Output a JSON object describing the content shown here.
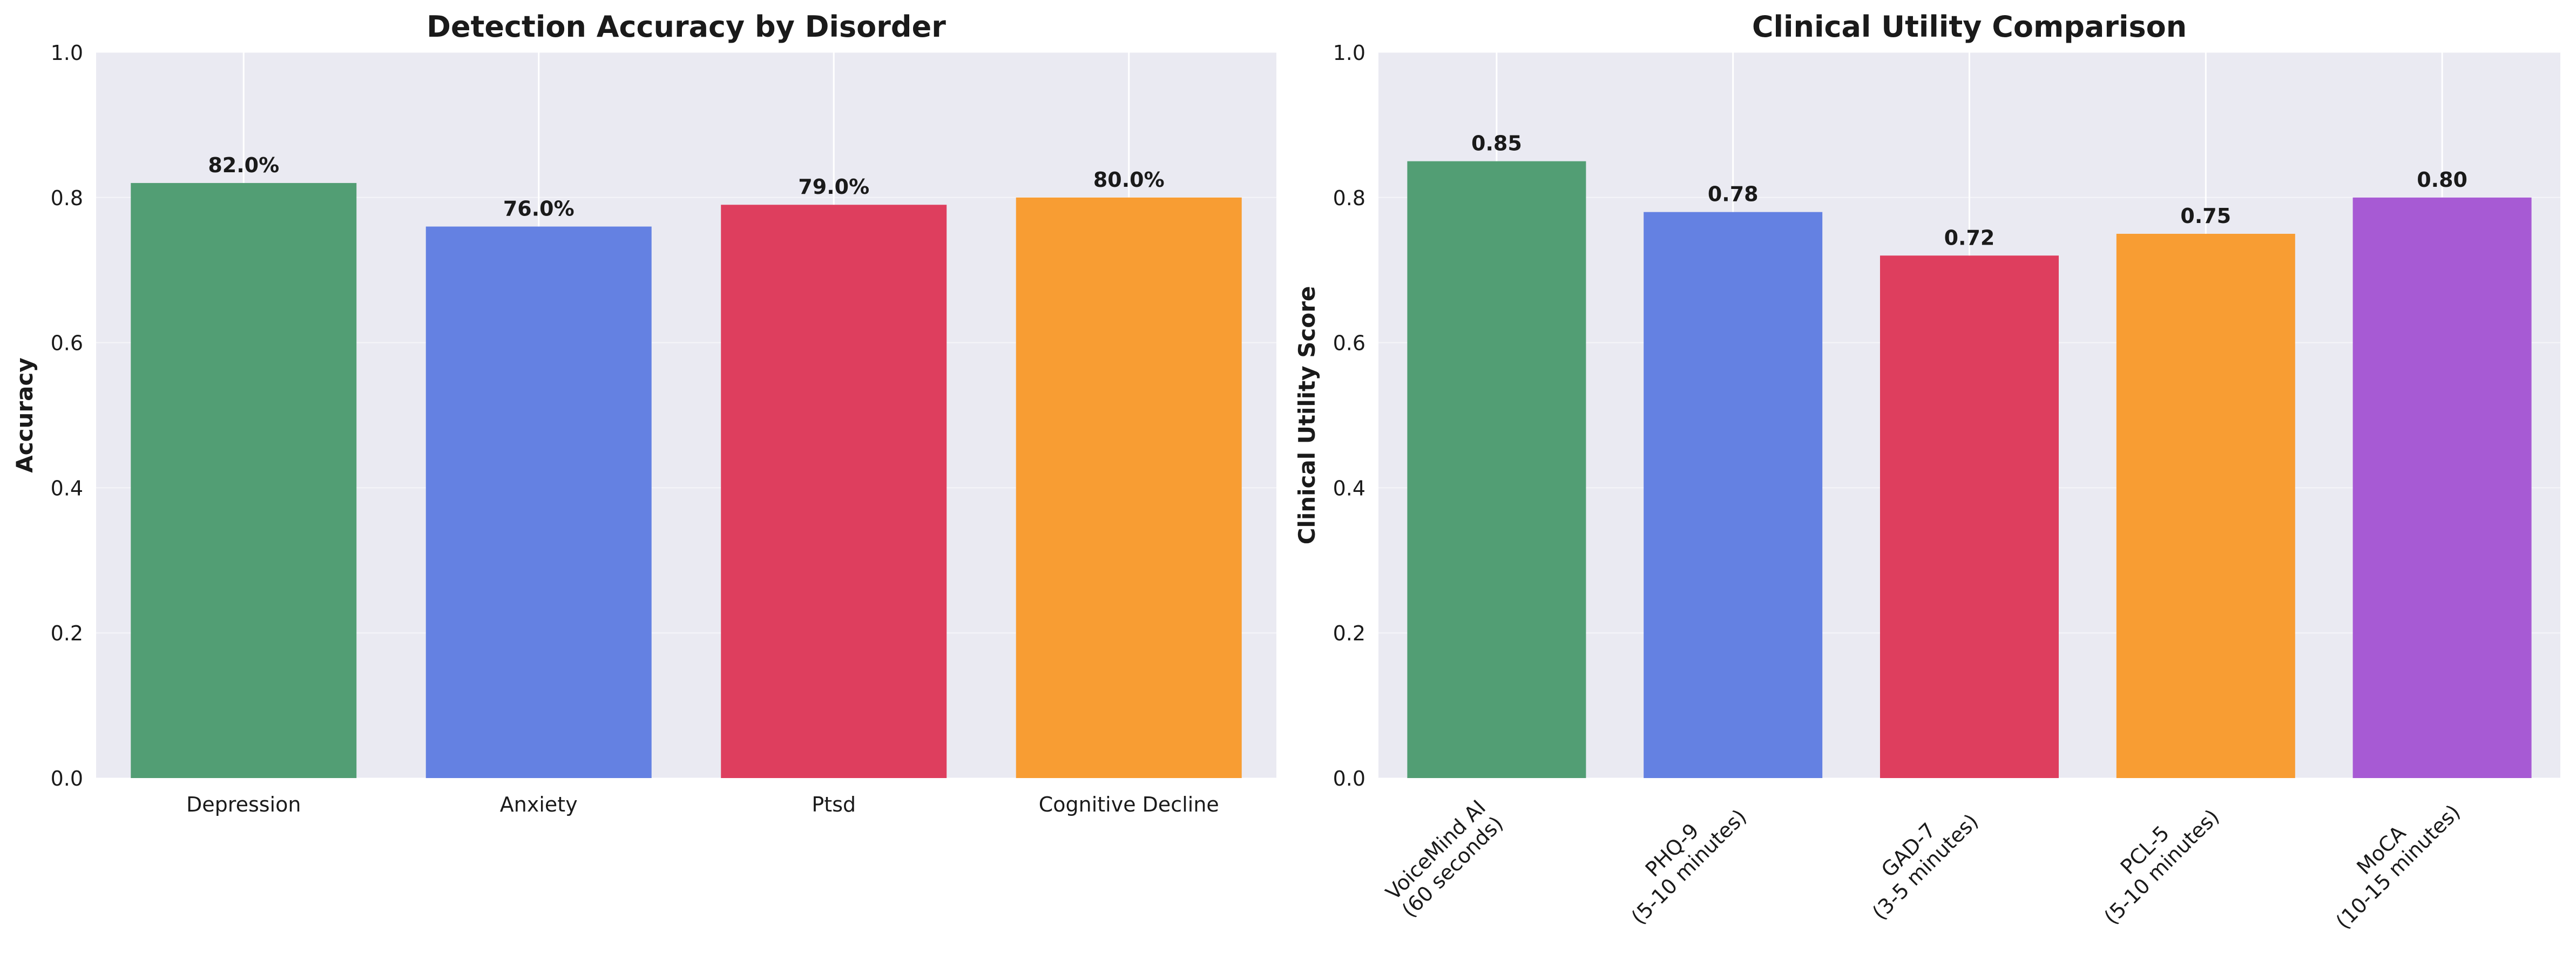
{
  "chart_data": [
    {
      "type": "bar",
      "title": "Detection Accuracy by Disorder",
      "xlabel": "",
      "ylabel": "Accuracy",
      "ylim": [
        0,
        1.0
      ],
      "yticks": [
        "0.0",
        "0.2",
        "0.4",
        "0.6",
        "0.8",
        "1.0"
      ],
      "categories": [
        "Depression",
        "Anxiety",
        "Ptsd",
        "Cognitive Decline"
      ],
      "values": [
        0.82,
        0.76,
        0.79,
        0.8
      ],
      "value_labels": [
        "82.0%",
        "76.0%",
        "79.0%",
        "80.0%"
      ],
      "colors": [
        "#529e74",
        "#6481e2",
        "#de3e5e",
        "#f89d33"
      ],
      "grid": true,
      "background": "#eaeaf2"
    },
    {
      "type": "bar",
      "title": "Clinical Utility Comparison",
      "xlabel": "",
      "ylabel": "Clinical Utility Score",
      "ylim": [
        0,
        1.0
      ],
      "yticks": [
        "0.0",
        "0.2",
        "0.4",
        "0.6",
        "0.8",
        "1.0"
      ],
      "categories": [
        "VoiceMind AI\n(60 seconds)",
        "PHQ-9\n(5-10 minutes)",
        "GAD-7\n(3-5 minutes)",
        "PCL-5\n(5-10 minutes)",
        "MoCA\n(10-15 minutes)"
      ],
      "values": [
        0.85,
        0.78,
        0.72,
        0.75,
        0.8
      ],
      "value_labels": [
        "0.85",
        "0.78",
        "0.72",
        "0.75",
        "0.80"
      ],
      "colors": [
        "#529e74",
        "#6481e2",
        "#de3e5e",
        "#f89d33",
        "#a75ad4"
      ],
      "grid": true,
      "background": "#eaeaf2"
    }
  ]
}
